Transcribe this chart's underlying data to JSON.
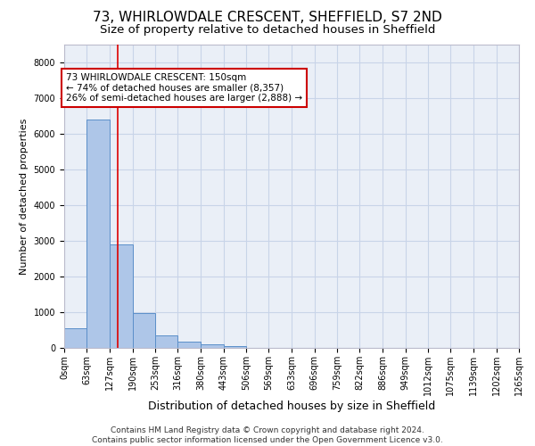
{
  "title1": "73, WHIRLOWDALE CRESCENT, SHEFFIELD, S7 2ND",
  "title2": "Size of property relative to detached houses in Sheffield",
  "xlabel": "Distribution of detached houses by size in Sheffield",
  "ylabel": "Number of detached properties",
  "bar_values": [
    550,
    6400,
    2900,
    980,
    350,
    170,
    100,
    60,
    0,
    0,
    0,
    0,
    0,
    0,
    0,
    0,
    0,
    0,
    0,
    0
  ],
  "bin_edges": [
    0,
    63,
    127,
    190,
    253,
    316,
    380,
    443,
    506,
    569,
    633,
    696,
    759,
    822,
    886,
    949,
    1012,
    1075,
    1139,
    1202,
    1265
  ],
  "x_tick_labels": [
    "0sqm",
    "63sqm",
    "127sqm",
    "190sqm",
    "253sqm",
    "316sqm",
    "380sqm",
    "443sqm",
    "506sqm",
    "569sqm",
    "633sqm",
    "696sqm",
    "759sqm",
    "822sqm",
    "886sqm",
    "949sqm",
    "1012sqm",
    "1075sqm",
    "1139sqm",
    "1202sqm",
    "1265sqm"
  ],
  "bar_color": "#aec6e8",
  "bar_edge_color": "#5b8fc9",
  "property_size": 150,
  "red_line_color": "#dd0000",
  "annotation_text": "73 WHIRLOWDALE CRESCENT: 150sqm\n← 74% of detached houses are smaller (8,357)\n26% of semi-detached houses are larger (2,888) →",
  "annotation_box_color": "#ffffff",
  "annotation_box_edge": "#cc0000",
  "ylim": [
    0,
    8500
  ],
  "yticks": [
    0,
    1000,
    2000,
    3000,
    4000,
    5000,
    6000,
    7000,
    8000
  ],
  "grid_color": "#c8d4e8",
  "background_color": "#eaeff7",
  "footer_text": "Contains HM Land Registry data © Crown copyright and database right 2024.\nContains public sector information licensed under the Open Government Licence v3.0.",
  "title1_fontsize": 11,
  "title2_fontsize": 9.5,
  "xlabel_fontsize": 9,
  "ylabel_fontsize": 8,
  "tick_fontsize": 7,
  "annotation_fontsize": 7.5,
  "footer_fontsize": 6.5
}
